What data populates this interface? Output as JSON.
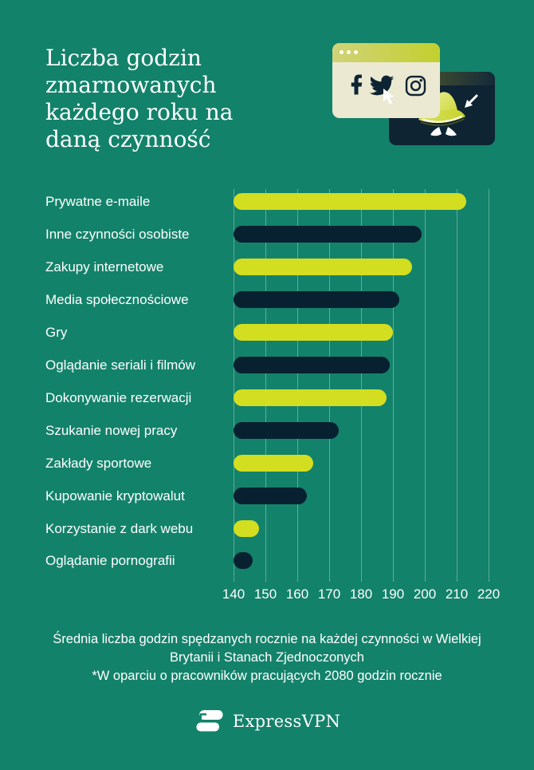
{
  "header": {
    "title": "Liczba godzin zmarnowanych każdego roku na daną czynność"
  },
  "illustration": {
    "browser_window_icons": [
      "facebook-icon",
      "twitter-icon",
      "instagram-icon"
    ],
    "cursor_icons": [
      "pointer-cursor-icon",
      "arrow-cursor-icon"
    ],
    "spy_window_icons": [
      "spy-hat-icon",
      "spy-eyes-icon"
    ],
    "browser_dots_count": 3
  },
  "chart_data": {
    "type": "bar",
    "orientation": "horizontal",
    "title": "Liczba godzin zmarnowanych każdego roku na daną czynność",
    "categories": [
      "Prywatne e-maile",
      "Inne czynności osobiste",
      "Zakupy internetowe",
      "Media społecznościowe",
      "Gry",
      "Oglądanie seriali i filmów",
      "Dokonywanie rezerwacji",
      "Szukanie nowej pracy",
      "Zakłady sportowe",
      "Kupowanie kryptowalut",
      "Korzystanie z dark webu",
      "Oglądanie pornografii"
    ],
    "values": [
      213,
      199,
      196,
      192,
      190,
      189,
      188,
      173,
      165,
      163,
      148,
      146
    ],
    "x_ticks": [
      140,
      150,
      160,
      170,
      180,
      190,
      200,
      210,
      220
    ],
    "xlim": [
      140,
      220
    ],
    "grid": true,
    "legend": false,
    "bar_color_pattern": "alternating",
    "xlabel": "",
    "ylabel": ""
  },
  "footer": {
    "description": "Średnia liczba godzin spędzanych rocznie na każdej czynności w Wielkiej Brytanii i Stanach Zjednoczonych",
    "note": "*W oparciu o pracowników pracujących 2080 godzin rocznie",
    "brand": "ExpressVPN"
  },
  "colors": {
    "background": "#13826A",
    "lime": "#D3DE20",
    "navy": "#082130",
    "icon_navy": "#0E2433",
    "cream_window": "#ECE9D2",
    "text": "#FFFFFF",
    "gridline": "rgba(255,255,255,0.33)"
  }
}
